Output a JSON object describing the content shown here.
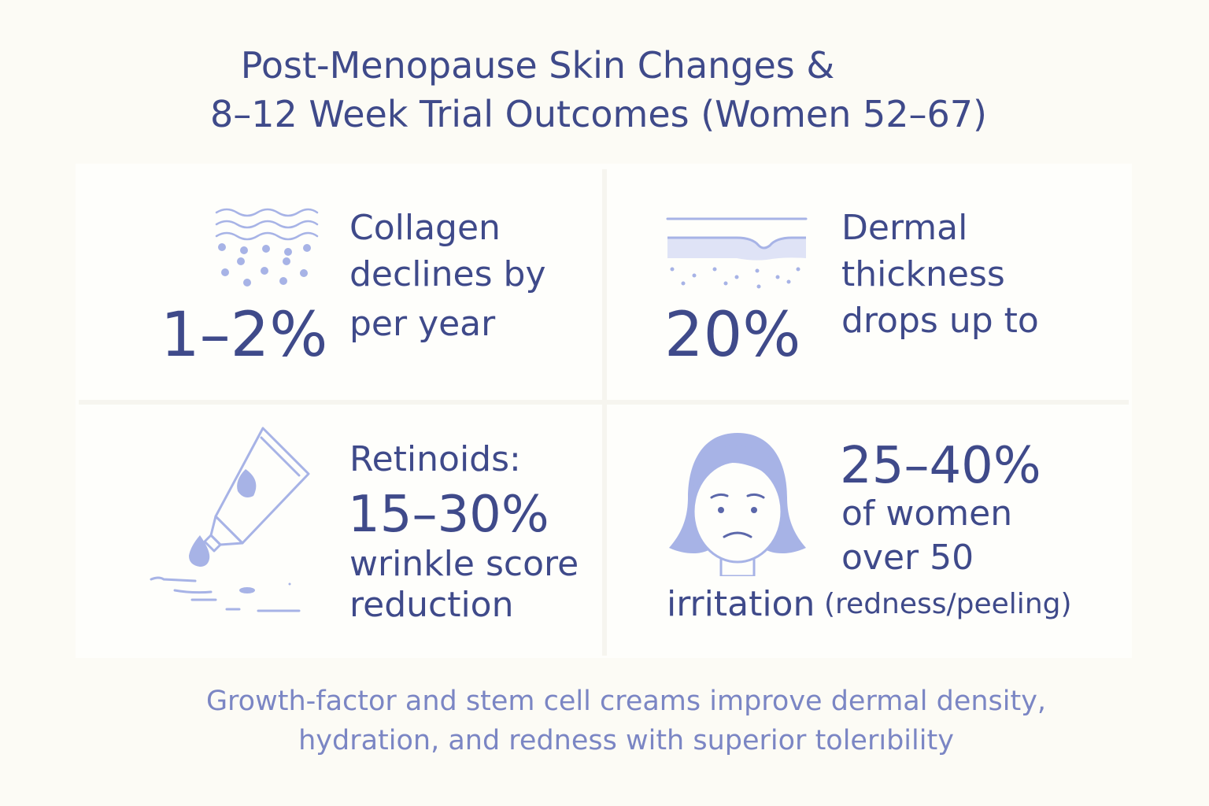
{
  "title": {
    "line1": "Post-Menopause Skin Changes &",
    "line2": "8–12 Week Trial Outcomes (Women 52–67)"
  },
  "cards": {
    "collagen": {
      "icon": "skin-waves-icon",
      "line1": "Collagen",
      "line2": "declines by",
      "line3": "per year",
      "value": "1–2%"
    },
    "dermal": {
      "icon": "skin-layer-icon",
      "line1": "Dermal",
      "line2": "thickness",
      "line3": "drops up to",
      "value": "20%"
    },
    "retinoids": {
      "icon": "cream-tube-icon",
      "line1": "Retinoids:",
      "value": "15–30%",
      "line2": "wrinkle score",
      "line3": "reduction"
    },
    "irritation": {
      "icon": "woman-face-icon",
      "value": "25–40%",
      "line1": "of women",
      "line2": "over 50",
      "label": "irritation",
      "detail": "(redness/peeling)"
    }
  },
  "footer": {
    "line1": "Growth-factor and stem cell creams improve dermal density,",
    "line2": "hydration, and redness with superior tolerıbility"
  },
  "colors": {
    "text": "#3f4a8a",
    "accent": "#a7b3e6",
    "footer": "#7b86c4",
    "background": "#fcfbf5"
  }
}
